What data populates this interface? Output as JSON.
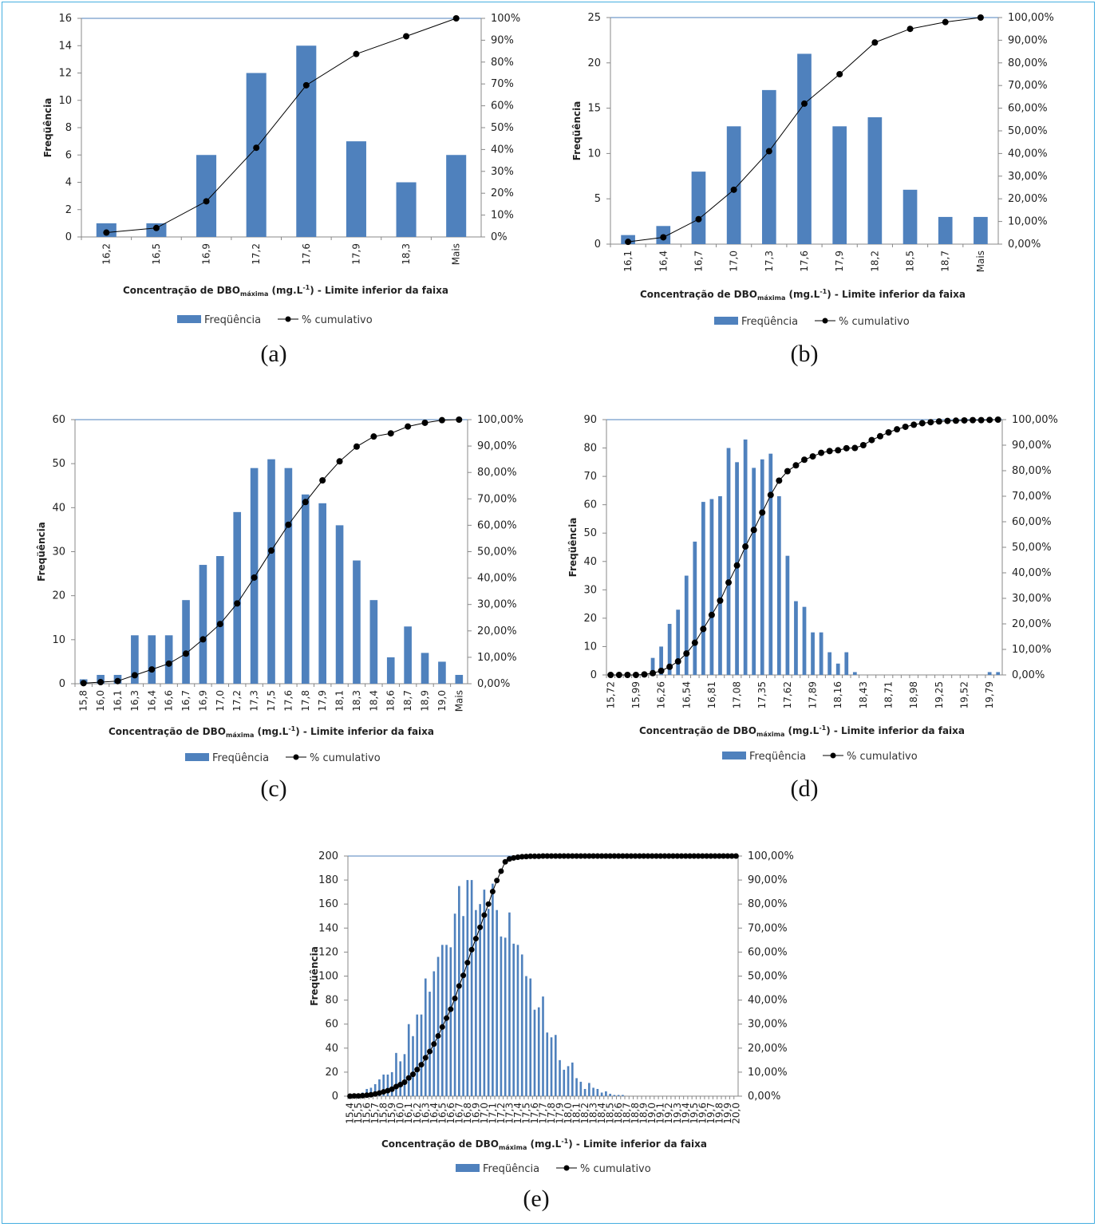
{
  "colors": {
    "bar": "#4f81bd",
    "line": "#000000",
    "frame": "#45aee0",
    "plot_border": "#4f81bd"
  },
  "chart_data": [
    {
      "id": "a",
      "caption": "(a)",
      "type": "bar+line",
      "ylabel": "Freqüência",
      "ylim": [
        0,
        16
      ],
      "yticks": [
        0,
        2,
        4,
        6,
        8,
        10,
        12,
        14,
        16
      ],
      "y2lim": [
        0,
        100
      ],
      "y2ticks": [
        "0%",
        "10%",
        "20%",
        "30%",
        "40%",
        "50%",
        "60%",
        "70%",
        "80%",
        "90%",
        "100%"
      ],
      "categories": [
        "16,2",
        "16,5",
        "16,9",
        "17,2",
        "17,6",
        "17,9",
        "18,3",
        "Mais"
      ],
      "label_every": 1,
      "series": [
        {
          "name": "Freqüência",
          "type": "bar",
          "values": [
            1,
            1,
            6,
            12,
            14,
            7,
            4,
            6
          ]
        },
        {
          "name": "% cumulativo",
          "type": "line",
          "values": [
            2.0,
            4.1,
            16.3,
            40.8,
            69.4,
            83.7,
            91.8,
            100
          ]
        }
      ],
      "xlabel_pre": "Concentração de DBO",
      "xlabel_sub": "máxima",
      "xlabel_unit": " (mg.L",
      "xlabel_sup": "-1",
      "xlabel_post": ")  - Limite inferior da faixa"
    },
    {
      "id": "b",
      "caption": "(b)",
      "type": "bar+line",
      "ylabel": "Freqüência",
      "ylim": [
        0,
        25
      ],
      "yticks": [
        0,
        5,
        10,
        15,
        20,
        25
      ],
      "y2lim": [
        0,
        100
      ],
      "y2ticks": [
        "0,00%",
        "10,00%",
        "20,00%",
        "30,00%",
        "40,00%",
        "50,00%",
        "60,00%",
        "70,00%",
        "80,00%",
        "90,00%",
        "100,00%"
      ],
      "categories": [
        "16,1",
        "16,4",
        "16,7",
        "17,0",
        "17,3",
        "17,6",
        "17,9",
        "18,2",
        "18,5",
        "18,7",
        "Mais"
      ],
      "label_every": 1,
      "series": [
        {
          "name": "Freqüência",
          "type": "bar",
          "values": [
            1,
            2,
            8,
            13,
            17,
            21,
            13,
            14,
            6,
            3,
            3
          ]
        },
        {
          "name": "% cumulativo",
          "type": "line",
          "values": [
            1.0,
            3.0,
            11.0,
            24.0,
            41.0,
            62.0,
            75.0,
            89.0,
            95.0,
            98.0,
            100
          ]
        }
      ],
      "xlabel_pre": "Concentração de DBO",
      "xlabel_sub": "máxima",
      "xlabel_unit": " (mg.L",
      "xlabel_sup": "-1",
      "xlabel_post": ")  - Limite inferior da faixa"
    },
    {
      "id": "c",
      "caption": "(c)",
      "type": "bar+line",
      "ylabel": "Freqüência",
      "ylim": [
        0,
        60
      ],
      "yticks": [
        0,
        10,
        20,
        30,
        40,
        50,
        60
      ],
      "y2lim": [
        0,
        100
      ],
      "y2ticks": [
        "0,00%",
        "10,00%",
        "20,00%",
        "30,00%",
        "40,00%",
        "50,00%",
        "60,00%",
        "70,00%",
        "80,00%",
        "90,00%",
        "100,00%"
      ],
      "categories": [
        "15,8",
        "16,0",
        "16,1",
        "16,3",
        "16,4",
        "16,6",
        "16,7",
        "16,9",
        "17,0",
        "17,2",
        "17,3",
        "17,5",
        "17,6",
        "17,8",
        "17,9",
        "18,1",
        "18,3",
        "18,4",
        "18,6",
        "18,7",
        "18,9",
        "19,0",
        "Mais"
      ],
      "label_every": 1,
      "series": [
        {
          "name": "Freqüência",
          "type": "bar",
          "values": [
            1,
            2,
            2,
            11,
            11,
            11,
            19,
            27,
            29,
            39,
            49,
            51,
            49,
            43,
            41,
            36,
            28,
            19,
            6,
            13,
            7,
            5,
            2
          ]
        },
        {
          "name": "% cumulativo",
          "type": "line",
          "values": [
            0.2,
            0.6,
            1.0,
            3.2,
            5.4,
            7.6,
            11.4,
            16.8,
            22.6,
            30.4,
            40.2,
            50.4,
            60.2,
            68.8,
            77.0,
            84.2,
            89.8,
            93.6,
            94.8,
            97.4,
            98.8,
            99.8,
            100
          ]
        }
      ],
      "xlabel_pre": "Concentração de DBO",
      "xlabel_sub": "máxima",
      "xlabel_unit": " (mg.L",
      "xlabel_sup": "-1",
      "xlabel_post": ")  - Limite inferior da faixa"
    },
    {
      "id": "d",
      "caption": "(d)",
      "type": "bar+line",
      "ylabel": "Freqüência",
      "ylim": [
        0,
        90
      ],
      "yticks": [
        0,
        10,
        20,
        30,
        40,
        50,
        60,
        70,
        80,
        90
      ],
      "y2lim": [
        0,
        100
      ],
      "y2ticks": [
        "0,00%",
        "10,00%",
        "20,00%",
        "30,00%",
        "40,00%",
        "50,00%",
        "60,00%",
        "70,00%",
        "80,00%",
        "90,00%",
        "100,00%"
      ],
      "categories": [
        "15,72",
        "15,81",
        "15,90",
        "15,99",
        "16,08",
        "16,17",
        "16,26",
        "16,36",
        "16,45",
        "16,54",
        "16,63",
        "16,72",
        "16,81",
        "16,90",
        "16,99",
        "17,08",
        "17,17",
        "17,26",
        "17,35",
        "17,44",
        "17,53",
        "17,62",
        "17,71",
        "17,80",
        "17,89",
        "17,98",
        "18,07",
        "18,16",
        "18,25",
        "18,34",
        "18,43",
        "18,52",
        "18,61",
        "18,71",
        "18,80",
        "18,89",
        "18,98",
        "19,07",
        "19,16",
        "19,25",
        "19,34",
        "19,43",
        "19,52",
        "19,61",
        "19,70",
        "19,79",
        "Mais"
      ],
      "label_every": 3,
      "series": [
        {
          "name": "Freqüência",
          "type": "bar",
          "values": [
            0,
            0,
            0,
            0,
            0,
            6,
            10,
            18,
            23,
            35,
            47,
            61,
            62,
            63,
            80,
            75,
            83,
            73,
            76,
            78,
            63,
            42,
            26,
            24,
            15,
            15,
            8,
            4,
            8,
            1,
            0,
            0,
            0,
            0,
            0,
            0,
            0,
            0,
            0,
            0,
            0,
            0,
            0,
            0,
            0,
            1,
            1
          ]
        },
        {
          "name": "% cumulativo",
          "type": "line",
          "values": [
            0,
            0,
            0,
            0,
            0.2,
            0.7,
            1.6,
            3.2,
            5.3,
            8.4,
            12.6,
            18.0,
            23.5,
            29.1,
            36.2,
            42.9,
            50.3,
            56.8,
            63.6,
            70.5,
            76.1,
            79.8,
            82.1,
            84.3,
            85.6,
            87.0,
            87.7,
            88.0,
            88.8,
            88.9,
            90,
            92,
            93.5,
            95,
            96.2,
            97.2,
            98,
            98.6,
            99,
            99.3,
            99.5,
            99.6,
            99.7,
            99.8,
            99.8,
            99.9,
            100
          ]
        }
      ],
      "xlabel_pre": "Concentração de DBO",
      "xlabel_sub": "máxima",
      "xlabel_unit": " (mg.L",
      "xlabel_sup": "-1",
      "xlabel_post": ")  - Limite inferior da faixa"
    },
    {
      "id": "e",
      "caption": "(e)",
      "type": "bar+line",
      "ylabel": "Freqüência",
      "ylim": [
        0,
        200
      ],
      "yticks": [
        0,
        20,
        40,
        60,
        80,
        100,
        120,
        140,
        160,
        180,
        200
      ],
      "y2lim": [
        0,
        100
      ],
      "y2ticks": [
        "0,00%",
        "10,00%",
        "20,00%",
        "30,00%",
        "40,00%",
        "50,00%",
        "60,00%",
        "70,00%",
        "80,00%",
        "90,00%",
        "100,00%"
      ],
      "categories": [
        "15,4",
        "15,4",
        "15,5",
        "15,5",
        "15,6",
        "15,6",
        "15,7",
        "15,7",
        "15,8",
        "15,8",
        "15,9",
        "15,9",
        "16,0",
        "16,0",
        "16,1",
        "16,1",
        "16,2",
        "16,2",
        "16,3",
        "16,3",
        "16,4",
        "16,4",
        "16,5",
        "16,5",
        "16,6",
        "16,6",
        "16,7",
        "16,7",
        "16,8",
        "16,8",
        "16,9",
        "16,9",
        "17,0",
        "17,0",
        "17,1",
        "17,1",
        "17,2",
        "17,2",
        "17,3",
        "17,3",
        "17,4",
        "17,4",
        "17,5",
        "17,5",
        "17,6",
        "17,6",
        "17,7",
        "17,7",
        "17,8",
        "17,8",
        "17,9",
        "17,9",
        "18,0",
        "18,0",
        "18,1",
        "18,1",
        "18,2",
        "18,2",
        "18,3",
        "18,3",
        "18,4",
        "18,4",
        "18,5",
        "18,5",
        "18,6",
        "18,6",
        "18,7",
        "18,7",
        "18,8",
        "18,8",
        "18,9",
        "18,9",
        "19,0",
        "19,0",
        "19,1",
        "19,1",
        "19,2",
        "19,2",
        "19,3",
        "19,3",
        "19,4",
        "19,4",
        "19,5",
        "19,5",
        "19,6",
        "19,6",
        "19,7",
        "19,7",
        "19,8",
        "19,8",
        "19,9",
        "19,9",
        "20,0"
      ],
      "label_every": 2,
      "series": [
        {
          "name": "Freqüência",
          "type": "bar",
          "values": [
            1,
            1,
            2,
            3,
            6,
            7,
            10,
            14,
            18,
            18,
            20,
            36,
            29,
            35,
            60,
            50,
            68,
            68,
            98,
            87,
            104,
            116,
            126,
            126,
            124,
            152,
            175,
            150,
            180,
            180,
            155,
            160,
            172,
            156,
            177,
            155,
            133,
            132,
            153,
            127,
            126,
            118,
            100,
            98,
            72,
            74,
            83,
            53,
            49,
            51,
            30,
            22,
            25,
            28,
            15,
            12,
            6,
            11,
            7,
            6,
            3,
            4,
            2,
            1,
            1,
            1,
            0,
            0,
            0,
            0,
            0,
            0,
            0,
            0,
            0,
            0,
            0,
            0,
            0,
            0,
            0,
            0,
            0,
            0,
            0,
            0,
            0,
            0,
            0,
            0,
            0,
            0,
            0
          ]
        },
        {
          "name": "% cumulativo",
          "type": "line",
          "values": [
            0.0,
            0.1,
            0.1,
            0.2,
            0.4,
            0.6,
            0.9,
            1.3,
            1.8,
            2.3,
            2.9,
            4.0,
            4.8,
            5.8,
            7.6,
            9.1,
            11.1,
            13.1,
            16.0,
            18.6,
            21.7,
            25.1,
            28.8,
            32.5,
            36.2,
            40.7,
            45.9,
            50.3,
            55.6,
            61.0,
            65.6,
            70.3,
            75.4,
            80.0,
            85.2,
            89.8,
            93.7,
            97.6,
            98.8,
            99.2,
            99.5,
            99.7,
            99.8,
            99.9,
            99.9,
            99.9,
            100,
            100,
            100,
            100,
            100,
            100,
            100,
            100,
            100,
            100,
            100,
            100,
            100,
            100,
            100,
            100,
            100,
            100,
            100,
            100,
            100,
            100,
            100,
            100,
            100,
            100,
            100,
            100,
            100,
            100,
            100,
            100,
            100,
            100,
            100,
            100,
            100,
            100,
            100,
            100,
            100,
            100,
            100,
            100,
            100,
            100,
            100
          ]
        }
      ],
      "xlabel_pre": "Concentração de DBO",
      "xlabel_sub": "máxima",
      "xlabel_unit": " (mg.L",
      "xlabel_sup": "-1",
      "xlabel_post": ")  - Limite inferior da faixa"
    }
  ],
  "legend": {
    "bar_label": "Freqüência",
    "line_label": "% cumulativo"
  }
}
